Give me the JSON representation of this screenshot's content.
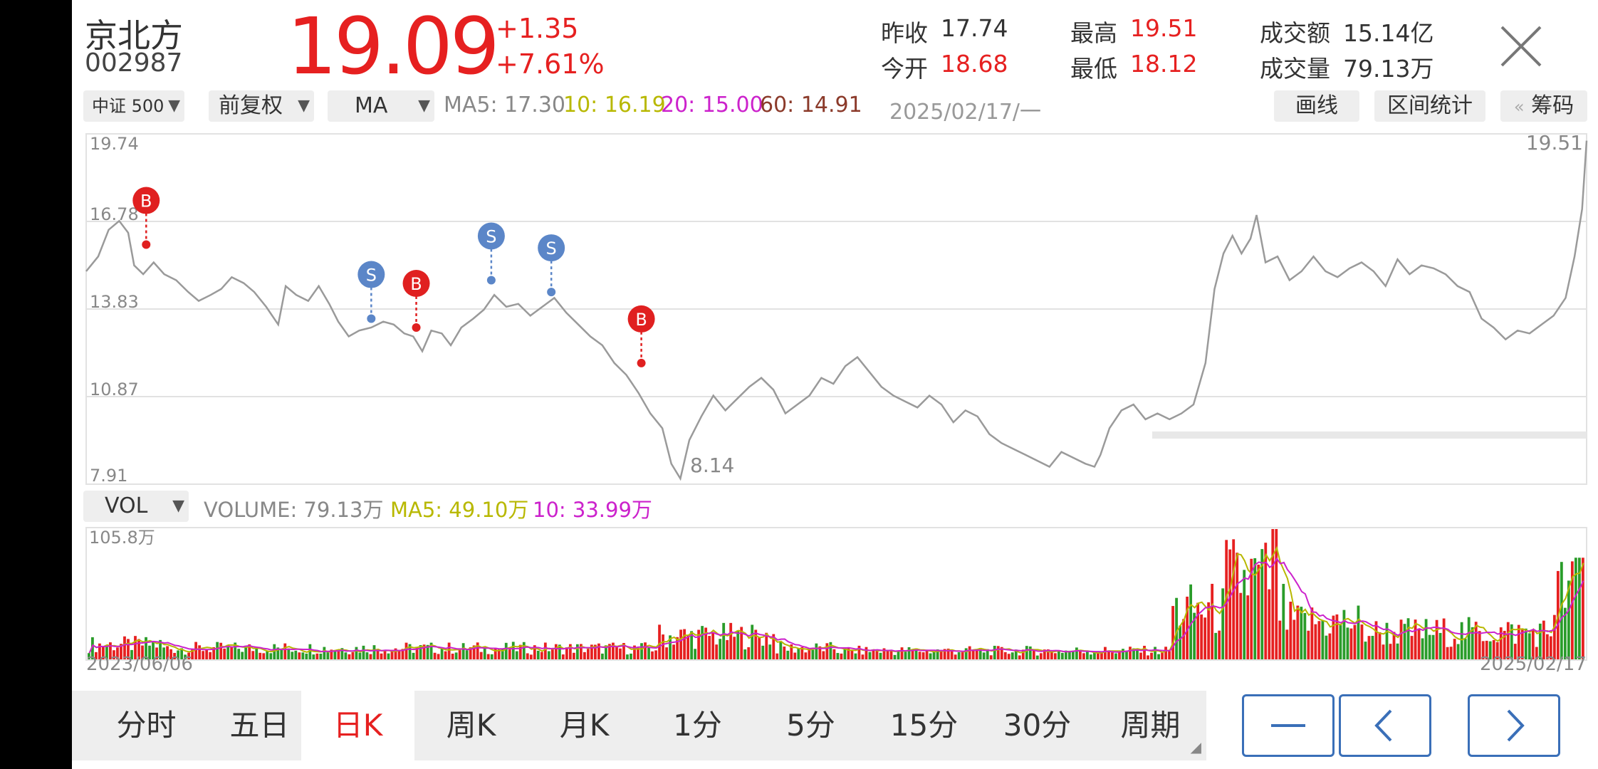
{
  "stock": {
    "name": "京北方",
    "code": "002987",
    "price": "19.09",
    "change": "+1.35",
    "change_pct": "+7.61%"
  },
  "quote": {
    "prev_close_label": "昨收",
    "prev_close": "17.74",
    "open_label": "今开",
    "open": "18.68",
    "high_label": "最高",
    "high": "19.51",
    "low_label": "最低",
    "low": "18.12",
    "amount_label": "成交额",
    "amount": "15.14亿",
    "volume_label": "成交量",
    "volume": "79.13万"
  },
  "toolbar": {
    "index_select": "中证 500",
    "adjust_select": "前复权",
    "indicator_select": "MA",
    "ma5": "MA5: 17.30",
    "ma10": "10: 16.19",
    "ma20": "20: 15.00",
    "ma60": "60: 14.91",
    "date": "2025/02/17/一",
    "draw_button": "画线",
    "range_stats_button": "区间统计",
    "chips_button": "筹码",
    "chips_prefix": "«"
  },
  "volume_bar": {
    "select": "VOL",
    "volume": "VOLUME: 79.13万",
    "ma5": "MA5: 49.10万",
    "ma10": "10: 33.99万"
  },
  "colors": {
    "up": "#e62020",
    "down": "#2a9c2a",
    "ma5": "#b8b800",
    "ma10": "#cc22cc",
    "ma60": "#8b3a2a",
    "buy_marker": "#e02020",
    "sell_marker": "#5b86c8",
    "price_line": "#9a9a9a"
  },
  "chart_data": {
    "type": "line",
    "x_start_label": "2023/06/06",
    "x_end_label": "2025/02/17",
    "y_ticks": [
      "19.74",
      "16.78",
      "13.83",
      "10.87",
      "7.91"
    ],
    "ylim": [
      7.91,
      19.74
    ],
    "max_label": "19.51",
    "min_label": "8.14",
    "volume_max_label": "105.8万",
    "markers": [
      {
        "type": "B",
        "t": 0.04,
        "price": 16.0
      },
      {
        "type": "S",
        "t": 0.19,
        "price": 13.5
      },
      {
        "type": "B",
        "t": 0.22,
        "price": 13.2
      },
      {
        "type": "S",
        "t": 0.27,
        "price": 14.8
      },
      {
        "type": "S",
        "t": 0.31,
        "price": 14.4
      },
      {
        "type": "B",
        "t": 0.37,
        "price": 12.0
      }
    ],
    "price_series": [
      [
        0.0,
        15.1
      ],
      [
        0.008,
        15.6
      ],
      [
        0.015,
        16.5
      ],
      [
        0.022,
        16.8
      ],
      [
        0.028,
        16.4
      ],
      [
        0.032,
        15.3
      ],
      [
        0.038,
        15.0
      ],
      [
        0.045,
        15.4
      ],
      [
        0.052,
        15.0
      ],
      [
        0.06,
        14.8
      ],
      [
        0.068,
        14.4
      ],
      [
        0.075,
        14.1
      ],
      [
        0.083,
        14.3
      ],
      [
        0.09,
        14.5
      ],
      [
        0.097,
        14.9
      ],
      [
        0.105,
        14.7
      ],
      [
        0.112,
        14.4
      ],
      [
        0.12,
        13.9
      ],
      [
        0.128,
        13.3
      ],
      [
        0.133,
        14.6
      ],
      [
        0.14,
        14.3
      ],
      [
        0.148,
        14.1
      ],
      [
        0.155,
        14.6
      ],
      [
        0.162,
        14.0
      ],
      [
        0.168,
        13.4
      ],
      [
        0.175,
        12.9
      ],
      [
        0.182,
        13.1
      ],
      [
        0.19,
        13.2
      ],
      [
        0.198,
        13.4
      ],
      [
        0.205,
        13.3
      ],
      [
        0.212,
        13.0
      ],
      [
        0.218,
        12.9
      ],
      [
        0.224,
        12.4
      ],
      [
        0.23,
        13.1
      ],
      [
        0.237,
        13.0
      ],
      [
        0.243,
        12.6
      ],
      [
        0.25,
        13.2
      ],
      [
        0.258,
        13.5
      ],
      [
        0.265,
        13.8
      ],
      [
        0.272,
        14.3
      ],
      [
        0.28,
        13.9
      ],
      [
        0.288,
        14.0
      ],
      [
        0.296,
        13.6
      ],
      [
        0.304,
        13.9
      ],
      [
        0.312,
        14.2
      ],
      [
        0.32,
        13.7
      ],
      [
        0.328,
        13.3
      ],
      [
        0.336,
        12.9
      ],
      [
        0.344,
        12.6
      ],
      [
        0.352,
        12.0
      ],
      [
        0.36,
        11.6
      ],
      [
        0.368,
        11.0
      ],
      [
        0.376,
        10.3
      ],
      [
        0.384,
        9.8
      ],
      [
        0.39,
        8.6
      ],
      [
        0.396,
        8.1
      ],
      [
        0.402,
        9.4
      ],
      [
        0.41,
        10.2
      ],
      [
        0.418,
        10.9
      ],
      [
        0.426,
        10.4
      ],
      [
        0.434,
        10.8
      ],
      [
        0.442,
        11.2
      ],
      [
        0.45,
        11.5
      ],
      [
        0.458,
        11.1
      ],
      [
        0.466,
        10.3
      ],
      [
        0.474,
        10.6
      ],
      [
        0.482,
        10.9
      ],
      [
        0.49,
        11.5
      ],
      [
        0.498,
        11.3
      ],
      [
        0.506,
        11.9
      ],
      [
        0.514,
        12.2
      ],
      [
        0.522,
        11.7
      ],
      [
        0.53,
        11.2
      ],
      [
        0.538,
        10.9
      ],
      [
        0.546,
        10.7
      ],
      [
        0.554,
        10.5
      ],
      [
        0.562,
        10.9
      ],
      [
        0.57,
        10.6
      ],
      [
        0.578,
        10.0
      ],
      [
        0.586,
        10.4
      ],
      [
        0.594,
        10.2
      ],
      [
        0.602,
        9.6
      ],
      [
        0.61,
        9.3
      ],
      [
        0.618,
        9.1
      ],
      [
        0.626,
        8.9
      ],
      [
        0.634,
        8.7
      ],
      [
        0.642,
        8.5
      ],
      [
        0.65,
        9.0
      ],
      [
        0.658,
        8.8
      ],
      [
        0.666,
        8.6
      ],
      [
        0.672,
        8.5
      ],
      [
        0.676,
        8.9
      ],
      [
        0.682,
        9.8
      ],
      [
        0.69,
        10.4
      ],
      [
        0.698,
        10.6
      ],
      [
        0.706,
        10.1
      ],
      [
        0.714,
        10.3
      ],
      [
        0.722,
        10.1
      ],
      [
        0.73,
        10.3
      ],
      [
        0.738,
        10.6
      ],
      [
        0.746,
        12.0
      ],
      [
        0.752,
        14.5
      ],
      [
        0.758,
        15.7
      ],
      [
        0.764,
        16.3
      ],
      [
        0.77,
        15.7
      ],
      [
        0.776,
        16.2
      ],
      [
        0.78,
        17.0
      ],
      [
        0.786,
        15.4
      ],
      [
        0.794,
        15.6
      ],
      [
        0.802,
        14.8
      ],
      [
        0.81,
        15.1
      ],
      [
        0.818,
        15.6
      ],
      [
        0.826,
        15.1
      ],
      [
        0.834,
        14.9
      ],
      [
        0.842,
        15.2
      ],
      [
        0.85,
        15.4
      ],
      [
        0.858,
        15.1
      ],
      [
        0.866,
        14.6
      ],
      [
        0.874,
        15.5
      ],
      [
        0.882,
        15.0
      ],
      [
        0.89,
        15.3
      ],
      [
        0.898,
        15.2
      ],
      [
        0.906,
        15.0
      ],
      [
        0.914,
        14.6
      ],
      [
        0.922,
        14.4
      ],
      [
        0.93,
        13.5
      ],
      [
        0.938,
        13.2
      ],
      [
        0.946,
        12.8
      ],
      [
        0.954,
        13.1
      ],
      [
        0.962,
        13.0
      ],
      [
        0.97,
        13.3
      ],
      [
        0.978,
        13.6
      ],
      [
        0.986,
        14.2
      ],
      [
        0.992,
        15.6
      ],
      [
        0.997,
        17.2
      ],
      [
        1.0,
        19.51
      ]
    ]
  }
}
